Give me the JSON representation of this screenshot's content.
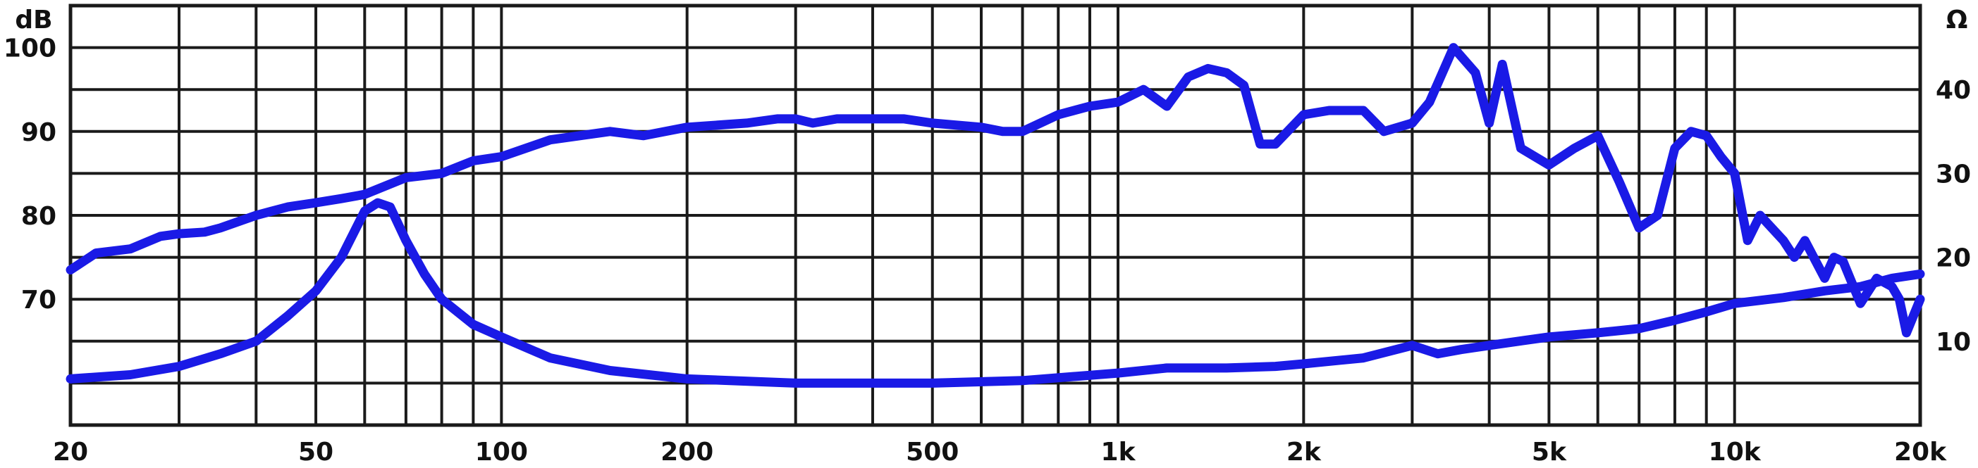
{
  "chart_data": {
    "type": "line",
    "title": "",
    "xscale": "log",
    "xlim": [
      20,
      20000
    ],
    "ylim_left": [
      55,
      105
    ],
    "ylim_right": [
      0,
      50
    ],
    "ylabel_left": "dB",
    "ylabel_right": "Ω",
    "grid": true,
    "line_color": "#1a1ae6",
    "x_ticks": [
      {
        "value": 20,
        "label": "20"
      },
      {
        "value": 50,
        "label": "50"
      },
      {
        "value": 100,
        "label": "100"
      },
      {
        "value": 200,
        "label": "200"
      },
      {
        "value": 500,
        "label": "500"
      },
      {
        "value": 1000,
        "label": "1k"
      },
      {
        "value": 2000,
        "label": "2k"
      },
      {
        "value": 5000,
        "label": "5k"
      },
      {
        "value": 10000,
        "label": "10k"
      },
      {
        "value": 20000,
        "label": "20k"
      }
    ],
    "y_ticks_left": [
      {
        "value": 70,
        "label": "70"
      },
      {
        "value": 80,
        "label": "80"
      },
      {
        "value": 90,
        "label": "90"
      },
      {
        "value": 100,
        "label": "100"
      }
    ],
    "y_ticks_right": [
      {
        "value": 10,
        "label": "10"
      },
      {
        "value": 20,
        "label": "20"
      },
      {
        "value": 30,
        "label": "30"
      },
      {
        "value": 40,
        "label": "40"
      }
    ],
    "series": [
      {
        "axis": "left",
        "x": [
          20,
          22,
          25,
          28,
          30,
          33,
          35,
          40,
          45,
          50,
          55,
          60,
          70,
          80,
          90,
          100,
          120,
          150,
          170,
          200,
          250,
          280,
          300,
          320,
          350,
          400,
          450,
          500,
          600,
          650,
          700,
          800,
          900,
          1000,
          1100,
          1200,
          1300,
          1400,
          1500,
          1600,
          1700,
          1800,
          2000,
          2200,
          2500,
          2700,
          3000,
          3200,
          3500,
          3800,
          4000,
          4200,
          4500,
          5000,
          5500,
          6000,
          6500,
          7000,
          7500,
          8000,
          8500,
          9000,
          9500,
          10000,
          10500,
          11000,
          12000,
          12500,
          13000,
          14000,
          14500,
          15000,
          16000,
          17000,
          18000,
          18500,
          19000,
          20000
        ],
        "y": [
          73.5,
          75.5,
          76,
          77.5,
          77.8,
          78,
          78.5,
          80,
          81,
          81.5,
          82,
          82.5,
          84.5,
          85,
          86.5,
          87,
          89,
          90,
          89.5,
          90.5,
          91,
          91.5,
          91.5,
          91,
          91.5,
          91.5,
          91.5,
          91,
          90.5,
          90,
          90,
          92,
          93,
          93.5,
          95,
          93,
          96.5,
          97.5,
          97,
          95.5,
          88.5,
          88.5,
          92,
          92.5,
          92.5,
          90,
          91,
          93.5,
          100,
          97,
          91,
          98,
          88,
          86,
          88,
          89.5,
          84,
          78.5,
          80,
          88,
          90,
          89.5,
          87,
          85,
          77,
          80,
          77,
          75,
          77,
          72.5,
          75,
          74.5,
          69.5,
          72.5,
          71.5,
          70,
          66,
          70
        ]
      },
      {
        "axis": "right",
        "x": [
          20,
          25,
          30,
          35,
          40,
          45,
          50,
          55,
          60,
          63,
          66,
          70,
          75,
          80,
          90,
          100,
          120,
          150,
          200,
          300,
          500,
          700,
          1000,
          1200,
          1500,
          1800,
          2000,
          2500,
          3000,
          3300,
          3600,
          4000,
          5000,
          6000,
          7000,
          8000,
          9000,
          10000,
          12000,
          14000,
          16000,
          18000,
          20000
        ],
        "y": [
          5.5,
          6,
          7,
          8.5,
          10,
          13,
          16,
          20,
          25.5,
          26.5,
          26,
          22,
          18,
          15,
          12,
          10.5,
          8,
          6.5,
          5.5,
          5,
          5,
          5.3,
          6.2,
          6.8,
          6.8,
          7,
          7.3,
          8,
          9.5,
          8.5,
          9,
          9.5,
          10.5,
          11,
          11.5,
          12.5,
          13.5,
          14.5,
          15.2,
          16,
          16.5,
          17.5,
          18
        ]
      }
    ]
  }
}
